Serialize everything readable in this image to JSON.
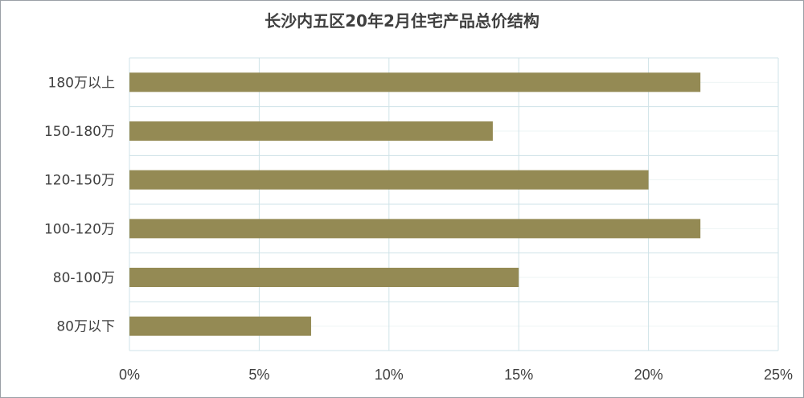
{
  "chart_data": {
    "type": "bar",
    "orientation": "horizontal",
    "title": "长沙内五区20年2月住宅产品总价结构",
    "categories": [
      "180万以上",
      "150-180万",
      "120-150万",
      "100-120万",
      "80-100万",
      "80万以下"
    ],
    "values": [
      22,
      14,
      20,
      22,
      15,
      7
    ],
    "xlim": [
      0,
      25
    ],
    "xticks": [
      "0%",
      "5%",
      "10%",
      "15%",
      "20%",
      "25%"
    ],
    "xtick_values": [
      0,
      5,
      10,
      15,
      20,
      25
    ],
    "grid": true,
    "bar_color": "#948a54",
    "grid_color": "#cfe3e8"
  }
}
